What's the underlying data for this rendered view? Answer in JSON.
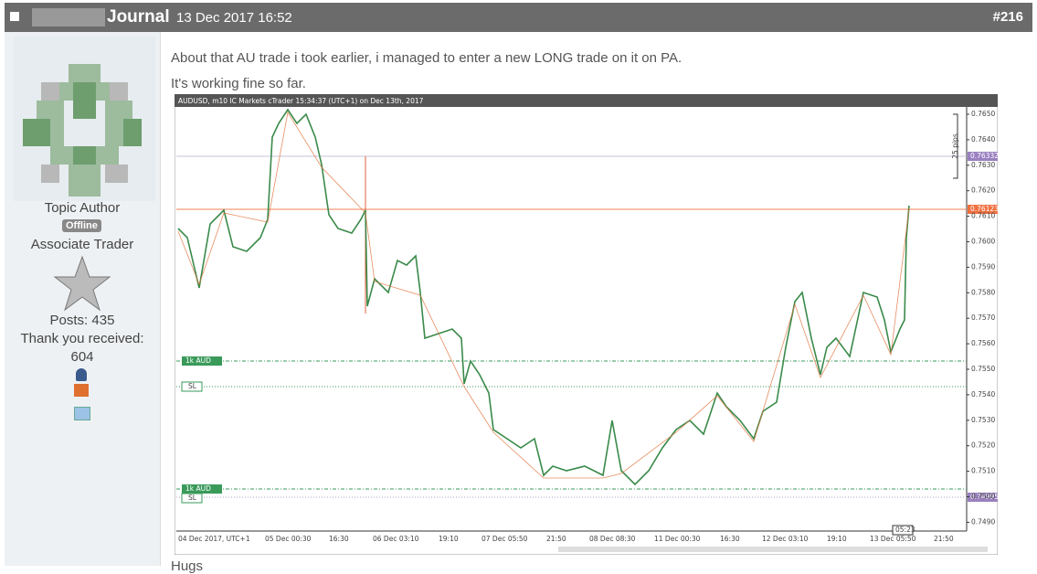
{
  "header": {
    "title": "Journal",
    "date": "13 Dec 2017 16:52",
    "post_number": "#216"
  },
  "author": {
    "role": "Topic Author",
    "status": "Offline",
    "rank": "Associate Trader",
    "posts": "Posts: 435",
    "thanks_label": "Thank you received:",
    "thanks_count": "604"
  },
  "post": {
    "lines": [
      "About that AU trade i took earlier, i managed to enter a new LONG trade on it on PA.",
      "It's working fine so far."
    ],
    "next_line": "Hugs"
  },
  "chart_image": {
    "title": "AUDUSD, m10 IC Markets cTrader 15:34:37 (UTC+1) on Dec 13th, 2017",
    "price_labels": [
      "0.7650",
      "0.7640",
      "0.7630",
      "0.7620",
      "0.7610",
      "0.7600",
      "0.7590",
      "0.7580",
      "0.7570",
      "0.7560",
      "0.7550",
      "0.7540",
      "0.7530",
      "0.7520",
      "0.7510",
      "0.7500",
      "0.7490"
    ],
    "time_labels": [
      "04 Dec 2017, UTC+1",
      "05 Dec 00:30",
      "16:30",
      "06 Dec 03:10",
      "19:10",
      "07 Dec 05:50",
      "21:50",
      "08 Dec 08:30",
      "11 Dec 00:30",
      "16:30",
      "12 Dec 03:10",
      "19:10",
      "13 Dec 05:50",
      "21:50"
    ],
    "line_tags": [
      "0.76332",
      "0.76123",
      "0.74995"
    ],
    "range_label": "25 pips",
    "order_tags": [
      "1k AUD",
      "1k AUD"
    ],
    "sl_tags": [
      "SL",
      "SL"
    ],
    "cursor_time": "05:23"
  }
}
